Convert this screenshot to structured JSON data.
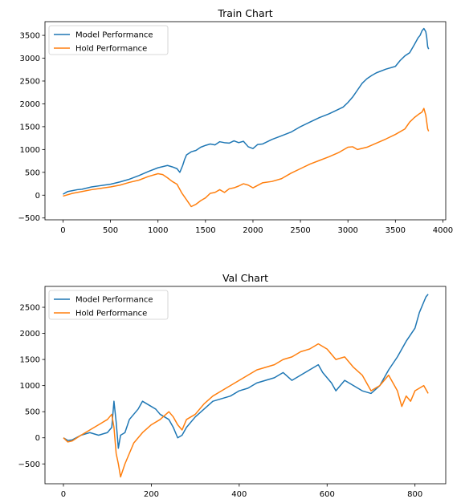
{
  "chart_data": [
    {
      "type": "line",
      "title": "Train Chart",
      "xlabel": "",
      "ylabel": "",
      "xlim": [
        -190,
        4030
      ],
      "ylim": [
        -540,
        3800
      ],
      "xticks": [
        0,
        500,
        1000,
        1500,
        2000,
        2500,
        3000,
        3500,
        4000
      ],
      "yticks": [
        -500,
        0,
        500,
        1000,
        1500,
        2000,
        2500,
        3000,
        3500
      ],
      "legend_position": "top-left",
      "grid": false,
      "series": [
        {
          "name": "Model Performance",
          "color": "#1f77b4",
          "x": [
            0,
            50,
            100,
            150,
            200,
            300,
            400,
            500,
            600,
            700,
            800,
            900,
            1000,
            1100,
            1150,
            1200,
            1230,
            1260,
            1280,
            1300,
            1350,
            1400,
            1450,
            1500,
            1550,
            1600,
            1650,
            1700,
            1750,
            1800,
            1850,
            1900,
            1950,
            2000,
            2050,
            2100,
            2200,
            2300,
            2400,
            2500,
            2600,
            2700,
            2800,
            2900,
            2950,
            3000,
            3050,
            3100,
            3150,
            3200,
            3250,
            3300,
            3400,
            3500,
            3550,
            3600,
            3650,
            3700,
            3740,
            3760,
            3780,
            3800,
            3820,
            3830,
            3840,
            3850
          ],
          "y": [
            20,
            80,
            100,
            120,
            130,
            180,
            210,
            240,
            290,
            350,
            430,
            520,
            600,
            650,
            620,
            580,
            500,
            650,
            780,
            880,
            950,
            980,
            1050,
            1090,
            1120,
            1100,
            1170,
            1150,
            1140,
            1190,
            1150,
            1180,
            1060,
            1020,
            1110,
            1120,
            1220,
            1300,
            1380,
            1500,
            1600,
            1700,
            1780,
            1880,
            1930,
            2030,
            2150,
            2300,
            2450,
            2550,
            2620,
            2680,
            2760,
            2820,
            2950,
            3050,
            3120,
            3300,
            3450,
            3500,
            3600,
            3650,
            3580,
            3450,
            3250,
            3200
          ]
        },
        {
          "name": "Hold Performance",
          "color": "#ff7f0e",
          "x": [
            0,
            100,
            200,
            300,
            400,
            500,
            600,
            700,
            800,
            900,
            1000,
            1050,
            1100,
            1150,
            1200,
            1250,
            1300,
            1350,
            1400,
            1450,
            1500,
            1550,
            1600,
            1650,
            1700,
            1750,
            1800,
            1850,
            1900,
            1950,
            2000,
            2100,
            2200,
            2300,
            2400,
            2500,
            2600,
            2700,
            2800,
            2900,
            3000,
            3050,
            3100,
            3200,
            3300,
            3400,
            3500,
            3600,
            3650,
            3700,
            3750,
            3780,
            3800,
            3820,
            3830,
            3840,
            3850
          ],
          "y": [
            -20,
            40,
            80,
            120,
            150,
            180,
            220,
            280,
            330,
            410,
            470,
            450,
            380,
            300,
            240,
            50,
            -100,
            -250,
            -200,
            -120,
            -60,
            40,
            60,
            120,
            60,
            140,
            160,
            200,
            250,
            220,
            160,
            270,
            300,
            360,
            480,
            580,
            680,
            760,
            840,
            930,
            1050,
            1060,
            1000,
            1050,
            1140,
            1230,
            1330,
            1450,
            1600,
            1700,
            1780,
            1820,
            1900,
            1750,
            1600,
            1450,
            1400
          ]
        }
      ]
    },
    {
      "type": "line",
      "title": "Val Chart",
      "xlabel": "",
      "ylabel": "",
      "xlim": [
        -42,
        870
      ],
      "ylim": [
        -880,
        2900
      ],
      "xticks": [
        0,
        200,
        400,
        600,
        800
      ],
      "yticks": [
        -500,
        0,
        500,
        1000,
        1500,
        2000,
        2500
      ],
      "legend_position": "top-left",
      "grid": false,
      "series": [
        {
          "name": "Model Performance",
          "color": "#1f77b4",
          "x": [
            0,
            10,
            20,
            40,
            60,
            80,
            100,
            110,
            115,
            120,
            125,
            130,
            140,
            150,
            160,
            170,
            180,
            190,
            200,
            210,
            220,
            240,
            250,
            260,
            270,
            280,
            300,
            320,
            340,
            360,
            380,
            400,
            420,
            440,
            460,
            480,
            500,
            520,
            540,
            560,
            580,
            590,
            600,
            610,
            620,
            640,
            660,
            680,
            700,
            720,
            740,
            760,
            780,
            800,
            810,
            820,
            825,
            830
          ],
          "y": [
            0,
            -50,
            -40,
            50,
            100,
            50,
            100,
            200,
            700,
            300,
            -200,
            50,
            100,
            350,
            450,
            550,
            700,
            650,
            600,
            550,
            450,
            350,
            200,
            0,
            50,
            200,
            400,
            550,
            700,
            750,
            800,
            900,
            950,
            1050,
            1100,
            1150,
            1250,
            1100,
            1200,
            1300,
            1400,
            1250,
            1150,
            1050,
            900,
            1100,
            1000,
            900,
            850,
            1000,
            1300,
            1550,
            1850,
            2100,
            2400,
            2600,
            2700,
            2750
          ]
        },
        {
          "name": "Hold Performance",
          "color": "#ff7f0e",
          "x": [
            0,
            10,
            20,
            40,
            60,
            80,
            100,
            110,
            115,
            120,
            125,
            130,
            140,
            150,
            160,
            180,
            200,
            220,
            240,
            250,
            260,
            270,
            280,
            300,
            320,
            340,
            360,
            380,
            400,
            420,
            440,
            460,
            480,
            500,
            520,
            540,
            560,
            580,
            600,
            610,
            620,
            640,
            660,
            680,
            700,
            720,
            740,
            760,
            770,
            780,
            790,
            800,
            820,
            830
          ],
          "y": [
            0,
            -80,
            -60,
            50,
            150,
            250,
            350,
            450,
            200,
            -300,
            -500,
            -750,
            -500,
            -300,
            -100,
            100,
            250,
            350,
            500,
            400,
            250,
            150,
            350,
            450,
            650,
            800,
            900,
            1000,
            1100,
            1200,
            1300,
            1350,
            1400,
            1500,
            1550,
            1650,
            1700,
            1800,
            1700,
            1600,
            1500,
            1550,
            1350,
            1200,
            900,
            1000,
            1200,
            900,
            600,
            800,
            700,
            900,
            1000,
            850
          ]
        }
      ]
    }
  ]
}
